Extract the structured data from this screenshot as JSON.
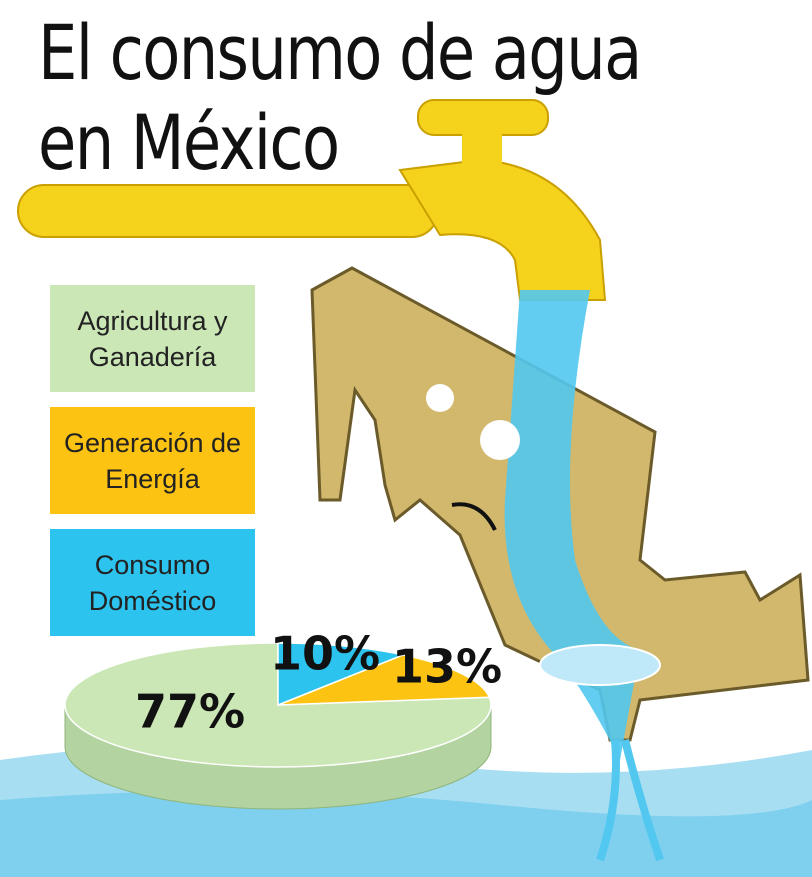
{
  "chart_data": {
    "type": "pie",
    "title": "El consumo de agua en México",
    "categories": [
      "Agricultura y Ganadería",
      "Generación de Energía",
      "Consumo Doméstico"
    ],
    "values": [
      77,
      13,
      10
    ],
    "value_labels": [
      "77%",
      "13%",
      "10%"
    ],
    "colors": [
      "#cbe7b6",
      "#fcc313",
      "#2cc3ee"
    ]
  }
}
